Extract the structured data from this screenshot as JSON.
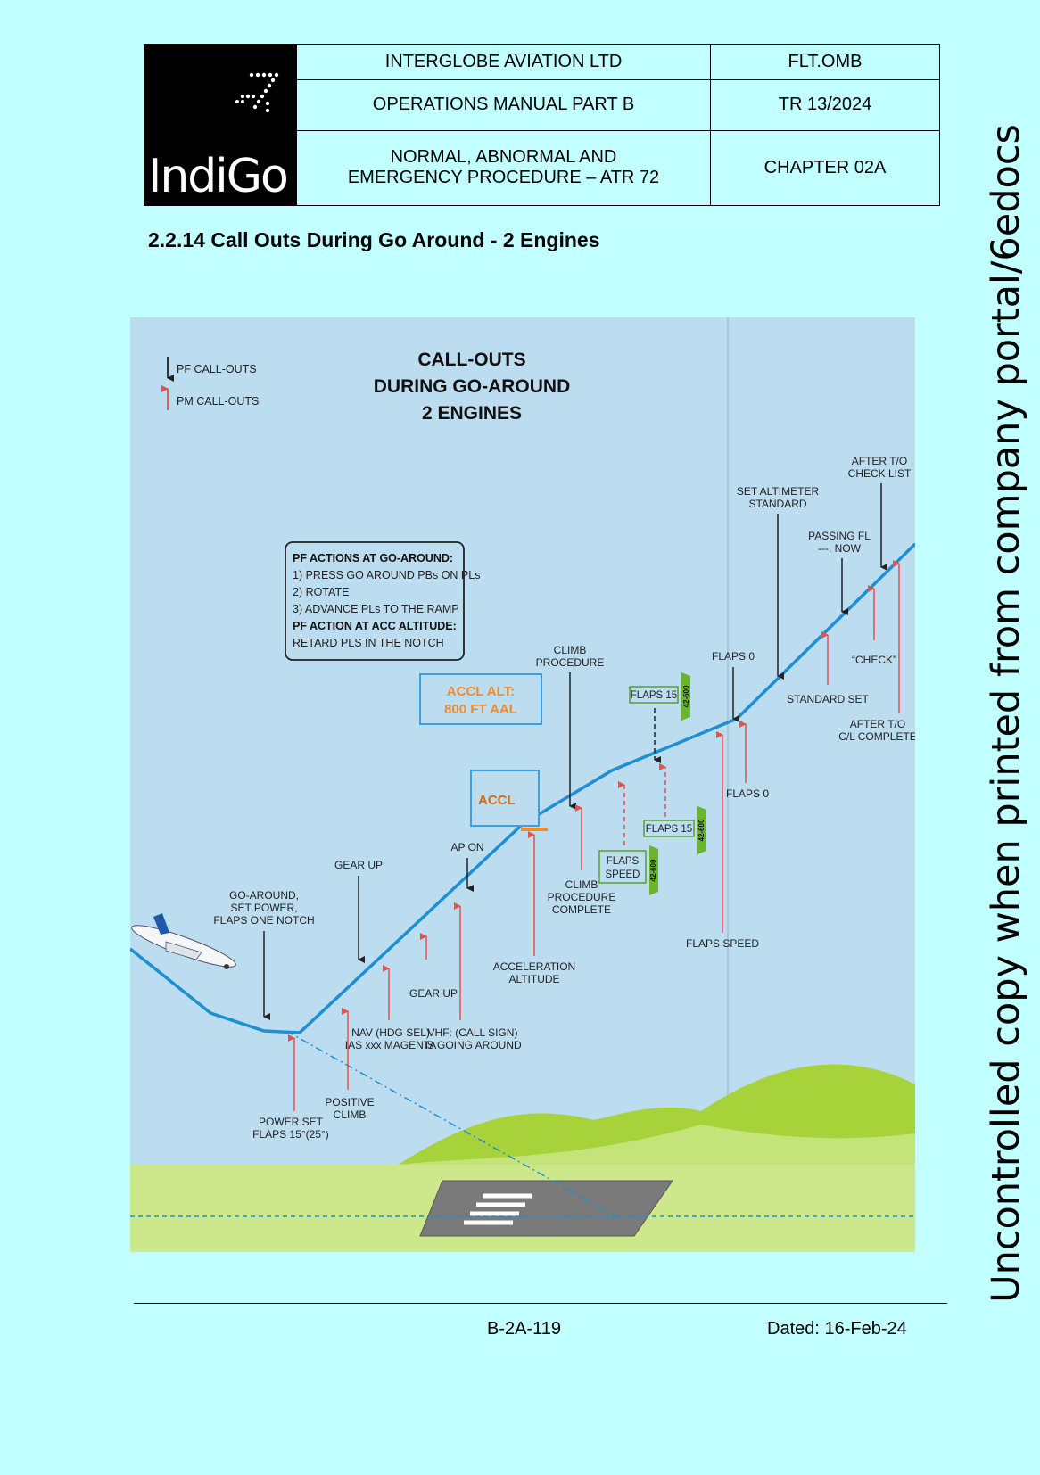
{
  "header": {
    "company": "INTERGLOBE AVIATION LTD",
    "manual": "OPERATIONS MANUAL PART B",
    "chapter_title_line1": "NORMAL, ABNORMAL AND",
    "chapter_title_line2": "EMERGENCY PROCEDURE – ATR 72",
    "doc_code": "FLT.OMB",
    "revision": "TR 13/2024",
    "chapter": "CHAPTER  02A",
    "logo_text": "IndiGo"
  },
  "section_title": "2.2.14 Call Outs During Go Around - 2 Engines",
  "watermark": "Uncontrolled copy when printed from company portal/6edocs",
  "figure": {
    "title_line1": "CALL-OUTS",
    "title_line2": "DURING GO-AROUND",
    "title_line3": "2 ENGINES",
    "legend_pf": "PF CALL-OUTS",
    "legend_pm": "PM CALL-OUTS",
    "actions_box": {
      "line1": "PF ACTIONS AT GO-AROUND:",
      "line2": "1) PRESS GO AROUND PBs ON PLs",
      "line3": "2) ROTATE",
      "line4": "3) ADVANCE PLs TO THE RAMP",
      "line5": "PF ACTION AT ACC ALTITUDE:",
      "line6": "RETARD PLS IN THE NOTCH"
    },
    "accl_alt_line1": "ACCL ALT:",
    "accl_alt_line2": "800 FT AAL",
    "accl": "ACCL",
    "colors": {
      "sky": "#bcdcf0",
      "path": "#1e8fd2",
      "pm_arrow": "#e8504a",
      "annotation": "#f08a2c",
      "ground": "#cde88a",
      "hill": "#a8d23a"
    },
    "callouts": {
      "go_around_1": "GO-AROUND,",
      "go_around_2": "SET POWER,",
      "go_around_3": "FLAPS ONE NOTCH",
      "power_set_1": "POWER SET",
      "power_set_2": "FLAPS 15°(25°)",
      "positive_climb_1": "POSITIVE",
      "positive_climb_2": "CLIMB",
      "gear_up_pf": "GEAR UP",
      "nav_1": "NAV (HDG SEL)",
      "nav_2": "IAS xxx MAGENTA",
      "gear_up_pm": "GEAR UP",
      "vhf_1": "VHF: (CALL SIGN)",
      "vhf_2": "IS GOING AROUND",
      "ap_on": "AP ON",
      "accel_alt_1": "ACCELERATION",
      "accel_alt_2": "ALTITUDE",
      "climb_proc_1": "CLIMB",
      "climb_proc_2": "PROCEDURE",
      "climb_complete_1": "CLIMB",
      "climb_complete_2": "PROCEDURE",
      "climb_complete_3": "COMPLETE",
      "flaps_speed_box_1": "FLAPS",
      "flaps_speed_box_2": "SPEED",
      "flaps15_lower": "FLAPS 15",
      "flaps15_upper": "FLAPS 15",
      "tag_42_600": "42-600",
      "flaps_speed": "FLAPS SPEED",
      "flaps0_pf": "FLAPS 0",
      "flaps0_pm": "FLAPS 0",
      "set_alt_1": "SET ALTIMETER",
      "set_alt_2": "STANDARD",
      "standard_set": "STANDARD SET",
      "passing_fl_1": "PASSING FL",
      "passing_fl_2": "---, NOW",
      "check": "“CHECK”",
      "after_to_1": "AFTER T/O",
      "after_to_2": "CHECK LIST",
      "after_to_complete_1": "AFTER T/O",
      "after_to_complete_2": "C/L COMPLETE"
    }
  },
  "footer": {
    "page": "B-2A-119",
    "dated": "Dated: 16-Feb-24"
  }
}
